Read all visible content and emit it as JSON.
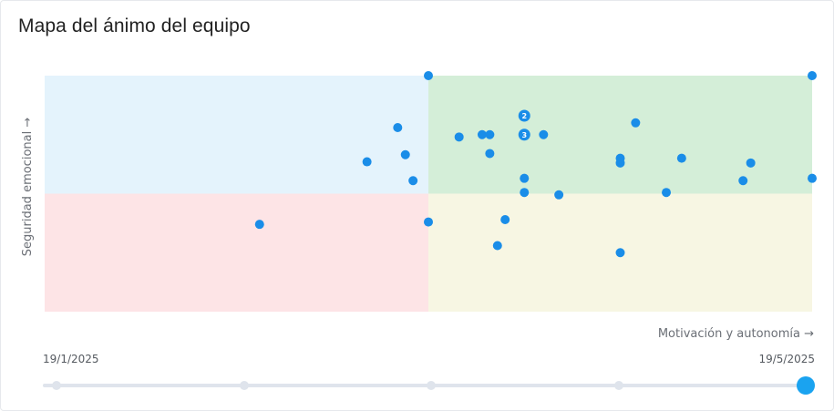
{
  "title": "Mapa del ánimo del equipo",
  "colors": {
    "point": "#1a8de8",
    "q_top_left": "#e4f3fc",
    "q_top_right": "#d4eed8",
    "q_bottom_left": "#fde4e6",
    "q_bottom_right": "#f7f6e3",
    "thumb": "#1aa3f0"
  },
  "chart_data": {
    "type": "scatter",
    "xlabel": "Motivación y autonomía →",
    "ylabel": "Seguridad emocional →",
    "xlim": [
      0,
      100
    ],
    "ylim": [
      0,
      100
    ],
    "quadrant_split": {
      "x": 50,
      "y": 50
    },
    "grid": false,
    "points": [
      {
        "x": 50,
        "y": 100,
        "count": 1
      },
      {
        "x": 100,
        "y": 100,
        "count": 1
      },
      {
        "x": 62.5,
        "y": 83,
        "count": 2,
        "label": "2"
      },
      {
        "x": 46,
        "y": 78,
        "count": 1
      },
      {
        "x": 77,
        "y": 80,
        "count": 1
      },
      {
        "x": 54,
        "y": 74,
        "count": 1
      },
      {
        "x": 57,
        "y": 75,
        "count": 1
      },
      {
        "x": 58,
        "y": 75,
        "count": 1
      },
      {
        "x": 62.5,
        "y": 75,
        "count": 3,
        "label": "3"
      },
      {
        "x": 65,
        "y": 75,
        "count": 1
      },
      {
        "x": 47,
        "y": 66.5,
        "count": 1
      },
      {
        "x": 58,
        "y": 67,
        "count": 1
      },
      {
        "x": 42,
        "y": 63.5,
        "count": 1
      },
      {
        "x": 75,
        "y": 65,
        "count": 1
      },
      {
        "x": 75,
        "y": 63,
        "count": 1
      },
      {
        "x": 83,
        "y": 65,
        "count": 1
      },
      {
        "x": 92,
        "y": 63,
        "count": 1
      },
      {
        "x": 48,
        "y": 55.5,
        "count": 1
      },
      {
        "x": 62.5,
        "y": 56.5,
        "count": 1
      },
      {
        "x": 91,
        "y": 55.5,
        "count": 1
      },
      {
        "x": 100,
        "y": 56.5,
        "count": 1
      },
      {
        "x": 62.5,
        "y": 50.5,
        "count": 1
      },
      {
        "x": 67,
        "y": 49.5,
        "count": 1
      },
      {
        "x": 81,
        "y": 50.5,
        "count": 1
      },
      {
        "x": 28,
        "y": 37,
        "count": 1
      },
      {
        "x": 50,
        "y": 38,
        "count": 1
      },
      {
        "x": 60,
        "y": 39,
        "count": 1
      },
      {
        "x": 59,
        "y": 28,
        "count": 1
      },
      {
        "x": 75,
        "y": 25,
        "count": 1
      }
    ]
  },
  "timeline": {
    "start_label": "19/1/2025",
    "end_label": "19/5/2025",
    "steps": 5,
    "selected_index": 4
  }
}
